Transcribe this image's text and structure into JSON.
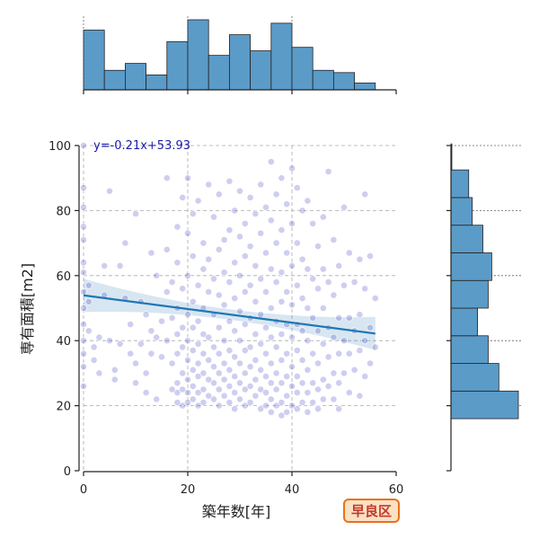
{
  "chart_data": {
    "type": "scatter",
    "title": "",
    "xlabel": "築年数[年]",
    "ylabel": "専有面積[m2]",
    "xlim": [
      0,
      60
    ],
    "ylim": [
      0,
      100
    ],
    "x_ticks": [
      "0",
      "20",
      "40",
      "60"
    ],
    "y_ticks": [
      "0",
      "20",
      "40",
      "60",
      "80",
      "100"
    ],
    "grid": true,
    "annotation": "y=-0.21x+53.93",
    "region_badge": "早良区",
    "point_color": "#3b3bc4",
    "line_color": "#1f77b4",
    "hist_color": "#5b9bc8",
    "regression": {
      "slope": -0.21,
      "intercept": 53.93,
      "x_range": [
        0,
        56
      ]
    },
    "top_histogram": {
      "bin_edges": [
        0,
        4,
        8,
        12,
        16,
        20,
        24,
        28,
        32,
        36,
        40,
        44,
        48,
        52,
        56
      ],
      "counts": [
        52,
        17,
        23,
        13,
        42,
        61,
        30,
        48,
        34,
        58,
        37,
        17,
        15,
        6
      ]
    },
    "right_histogram": {
      "bin_edges": [
        16,
        24.5,
        33,
        41.5,
        50,
        58.5,
        67,
        75.5,
        84,
        92.5,
        101
      ],
      "counts": [
        76,
        54,
        42,
        30,
        42,
        46,
        36,
        24,
        20,
        1
      ]
    },
    "points": [
      [
        0,
        100
      ],
      [
        0,
        87
      ],
      [
        0,
        81
      ],
      [
        0,
        75
      ],
      [
        0,
        71
      ],
      [
        0,
        64
      ],
      [
        0,
        61
      ],
      [
        0,
        55
      ],
      [
        0,
        50
      ],
      [
        0,
        45
      ],
      [
        0,
        40
      ],
      [
        0,
        36
      ],
      [
        0,
        32
      ],
      [
        0,
        26
      ],
      [
        1,
        57
      ],
      [
        1,
        52
      ],
      [
        1,
        43
      ],
      [
        2,
        38
      ],
      [
        2,
        34
      ],
      [
        3,
        30
      ],
      [
        3,
        41
      ],
      [
        4,
        63
      ],
      [
        4,
        54
      ],
      [
        5,
        86
      ],
      [
        5,
        40
      ],
      [
        6,
        31
      ],
      [
        6,
        28
      ],
      [
        7,
        39
      ],
      [
        7,
        63
      ],
      [
        8,
        70
      ],
      [
        8,
        53
      ],
      [
        9,
        36
      ],
      [
        9,
        45
      ],
      [
        10,
        79
      ],
      [
        10,
        27
      ],
      [
        10,
        33
      ],
      [
        11,
        52
      ],
      [
        11,
        39
      ],
      [
        12,
        48
      ],
      [
        12,
        30
      ],
      [
        12,
        24
      ],
      [
        13,
        67
      ],
      [
        13,
        43
      ],
      [
        13,
        36
      ],
      [
        14,
        60
      ],
      [
        14,
        41
      ],
      [
        14,
        22
      ],
      [
        15,
        46
      ],
      [
        15,
        35
      ],
      [
        16,
        90
      ],
      [
        16,
        68
      ],
      [
        16,
        55
      ],
      [
        16,
        40
      ],
      [
        17,
        58
      ],
      [
        17,
        47
      ],
      [
        17,
        33
      ],
      [
        17,
        25
      ],
      [
        18,
        75
      ],
      [
        18,
        64
      ],
      [
        18,
        50
      ],
      [
        18,
        42
      ],
      [
        18,
        36
      ],
      [
        18,
        27
      ],
      [
        18,
        24
      ],
      [
        18,
        21
      ],
      [
        19,
        84
      ],
      [
        19,
        56
      ],
      [
        19,
        44
      ],
      [
        19,
        38
      ],
      [
        19,
        30
      ],
      [
        19,
        25
      ],
      [
        19,
        20
      ],
      [
        20,
        90
      ],
      [
        20,
        73
      ],
      [
        20,
        60
      ],
      [
        20,
        48
      ],
      [
        20,
        40
      ],
      [
        20,
        34
      ],
      [
        20,
        28
      ],
      [
        20,
        24
      ],
      [
        20,
        21
      ],
      [
        21,
        79
      ],
      [
        21,
        66
      ],
      [
        21,
        52
      ],
      [
        21,
        44
      ],
      [
        21,
        37
      ],
      [
        21,
        31
      ],
      [
        21,
        26
      ],
      [
        21,
        22
      ],
      [
        22,
        83
      ],
      [
        22,
        57
      ],
      [
        22,
        46
      ],
      [
        22,
        39
      ],
      [
        22,
        33
      ],
      [
        22,
        29
      ],
      [
        22,
        24
      ],
      [
        22,
        20
      ],
      [
        23,
        70
      ],
      [
        23,
        62
      ],
      [
        23,
        50
      ],
      [
        23,
        42
      ],
      [
        23,
        36
      ],
      [
        23,
        30
      ],
      [
        23,
        25
      ],
      [
        23,
        21
      ],
      [
        24,
        88
      ],
      [
        24,
        65
      ],
      [
        24,
        55
      ],
      [
        24,
        41
      ],
      [
        24,
        34
      ],
      [
        24,
        28
      ],
      [
        24,
        23
      ],
      [
        25,
        78
      ],
      [
        25,
        59
      ],
      [
        25,
        48
      ],
      [
        25,
        38
      ],
      [
        25,
        32
      ],
      [
        25,
        27
      ],
      [
        25,
        22
      ],
      [
        26,
        85
      ],
      [
        26,
        68
      ],
      [
        26,
        54
      ],
      [
        26,
        44
      ],
      [
        26,
        36
      ],
      [
        26,
        30
      ],
      [
        26,
        25
      ],
      [
        26,
        20
      ],
      [
        27,
        71
      ],
      [
        27,
        61
      ],
      [
        27,
        51
      ],
      [
        27,
        40
      ],
      [
        27,
        33
      ],
      [
        27,
        28
      ],
      [
        27,
        23
      ],
      [
        28,
        89
      ],
      [
        28,
        74
      ],
      [
        28,
        58
      ],
      [
        28,
        46
      ],
      [
        28,
        37
      ],
      [
        28,
        31
      ],
      [
        28,
        26
      ],
      [
        28,
        21
      ],
      [
        29,
        80
      ],
      [
        29,
        64
      ],
      [
        29,
        53
      ],
      [
        29,
        43
      ],
      [
        29,
        35
      ],
      [
        29,
        29
      ],
      [
        29,
        24
      ],
      [
        29,
        19
      ],
      [
        30,
        86
      ],
      [
        30,
        72
      ],
      [
        30,
        60
      ],
      [
        30,
        49
      ],
      [
        30,
        40
      ],
      [
        30,
        33
      ],
      [
        30,
        27
      ],
      [
        30,
        22
      ],
      [
        31,
        76
      ],
      [
        31,
        66
      ],
      [
        31,
        55
      ],
      [
        31,
        45
      ],
      [
        31,
        37
      ],
      [
        31,
        30
      ],
      [
        31,
        25
      ],
      [
        31,
        20
      ],
      [
        32,
        84
      ],
      [
        32,
        69
      ],
      [
        32,
        57
      ],
      [
        32,
        47
      ],
      [
        32,
        38
      ],
      [
        32,
        32
      ],
      [
        32,
        26
      ],
      [
        32,
        21
      ],
      [
        33,
        79
      ],
      [
        33,
        63
      ],
      [
        33,
        52
      ],
      [
        33,
        42
      ],
      [
        33,
        34
      ],
      [
        33,
        28
      ],
      [
        33,
        23
      ],
      [
        34,
        88
      ],
      [
        34,
        73
      ],
      [
        34,
        59
      ],
      [
        34,
        48
      ],
      [
        34,
        39
      ],
      [
        34,
        31
      ],
      [
        34,
        25
      ],
      [
        34,
        19
      ],
      [
        35,
        81
      ],
      [
        35,
        67
      ],
      [
        35,
        55
      ],
      [
        35,
        44
      ],
      [
        35,
        36
      ],
      [
        35,
        29
      ],
      [
        35,
        24
      ],
      [
        35,
        20
      ],
      [
        36,
        95
      ],
      [
        36,
        77
      ],
      [
        36,
        62
      ],
      [
        36,
        50
      ],
      [
        36,
        41
      ],
      [
        36,
        33
      ],
      [
        36,
        27
      ],
      [
        36,
        22
      ],
      [
        36,
        18
      ],
      [
        37,
        85
      ],
      [
        37,
        70
      ],
      [
        37,
        58
      ],
      [
        37,
        46
      ],
      [
        37,
        38
      ],
      [
        37,
        30
      ],
      [
        37,
        25
      ],
      [
        37,
        20
      ],
      [
        38,
        90
      ],
      [
        38,
        74
      ],
      [
        38,
        61
      ],
      [
        38,
        52
      ],
      [
        38,
        42
      ],
      [
        38,
        34
      ],
      [
        38,
        27
      ],
      [
        38,
        21
      ],
      [
        38,
        17
      ],
      [
        39,
        82
      ],
      [
        39,
        67
      ],
      [
        39,
        55
      ],
      [
        39,
        45
      ],
      [
        39,
        36
      ],
      [
        39,
        29
      ],
      [
        39,
        23
      ],
      [
        39,
        18
      ],
      [
        40,
        93
      ],
      [
        40,
        76
      ],
      [
        40,
        63
      ],
      [
        40,
        51
      ],
      [
        40,
        41
      ],
      [
        40,
        32
      ],
      [
        40,
        26
      ],
      [
        40,
        20
      ],
      [
        41,
        87
      ],
      [
        41,
        70
      ],
      [
        41,
        57
      ],
      [
        41,
        45
      ],
      [
        41,
        37
      ],
      [
        41,
        29
      ],
      [
        41,
        24
      ],
      [
        41,
        19
      ],
      [
        42,
        80
      ],
      [
        42,
        65
      ],
      [
        42,
        53
      ],
      [
        42,
        43
      ],
      [
        42,
        34
      ],
      [
        42,
        27
      ],
      [
        42,
        21
      ],
      [
        43,
        83
      ],
      [
        43,
        62
      ],
      [
        43,
        50
      ],
      [
        43,
        40
      ],
      [
        43,
        31
      ],
      [
        43,
        24
      ],
      [
        43,
        18
      ],
      [
        44,
        76
      ],
      [
        44,
        59
      ],
      [
        44,
        47
      ],
      [
        44,
        36
      ],
      [
        44,
        27
      ],
      [
        44,
        21
      ],
      [
        45,
        69
      ],
      [
        45,
        56
      ],
      [
        45,
        43
      ],
      [
        45,
        33
      ],
      [
        45,
        25
      ],
      [
        45,
        19
      ],
      [
        46,
        78
      ],
      [
        46,
        62
      ],
      [
        46,
        50
      ],
      [
        46,
        39
      ],
      [
        46,
        28
      ],
      [
        46,
        22
      ],
      [
        47,
        92
      ],
      [
        47,
        58
      ],
      [
        47,
        44
      ],
      [
        47,
        35
      ],
      [
        47,
        26
      ],
      [
        48,
        71
      ],
      [
        48,
        54
      ],
      [
        48,
        41
      ],
      [
        48,
        30
      ],
      [
        48,
        22
      ],
      [
        49,
        63
      ],
      [
        49,
        47
      ],
      [
        49,
        36
      ],
      [
        49,
        27
      ],
      [
        49,
        19
      ],
      [
        50,
        81
      ],
      [
        50,
        57
      ],
      [
        50,
        40
      ],
      [
        50,
        30
      ],
      [
        51,
        67
      ],
      [
        51,
        47
      ],
      [
        51,
        36
      ],
      [
        51,
        24
      ],
      [
        52,
        58
      ],
      [
        52,
        43
      ],
      [
        52,
        31
      ],
      [
        53,
        65
      ],
      [
        53,
        48
      ],
      [
        53,
        37
      ],
      [
        53,
        23
      ],
      [
        54,
        85
      ],
      [
        54,
        56
      ],
      [
        54,
        40
      ],
      [
        54,
        29
      ],
      [
        55,
        66
      ],
      [
        55,
        44
      ],
      [
        55,
        33
      ],
      [
        56,
        53
      ],
      [
        56,
        38
      ]
    ]
  }
}
